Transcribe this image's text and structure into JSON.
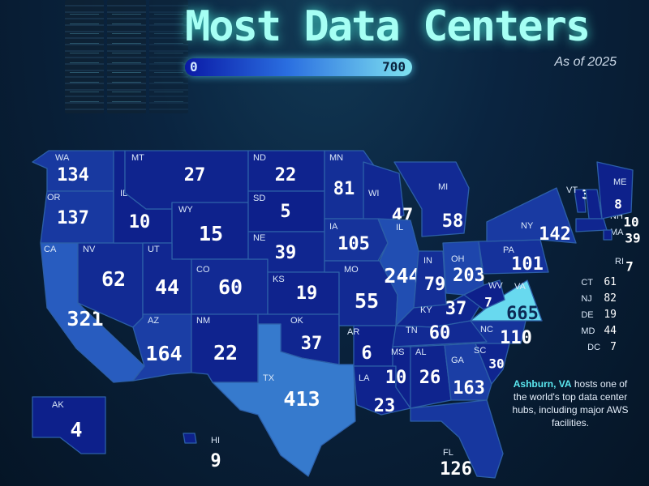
{
  "title": "Most Data Centers",
  "scale": {
    "min_label": "0",
    "max_label": "700",
    "min": 0,
    "max": 700,
    "color_low": "#0a1aa6",
    "color_high": "#7fe3f0"
  },
  "date_note": "As of 2025",
  "callout": {
    "highlight": "Ashburn, VA",
    "text": "hosts one of the world's top data center hubs, including major AWS facilities."
  },
  "colors": {
    "background": "#061a2c",
    "state_stroke": "#2c5fa8",
    "title_glow": "#a6fff4"
  },
  "states": [
    {
      "abbr": "WA",
      "value": 134
    },
    {
      "abbr": "OR",
      "value": 137
    },
    {
      "abbr": "CA",
      "value": 321
    },
    {
      "abbr": "NV",
      "value": 62
    },
    {
      "abbr": "ID",
      "value": 10
    },
    {
      "abbr": "MT",
      "value": 27
    },
    {
      "abbr": "WY",
      "value": 15
    },
    {
      "abbr": "UT",
      "value": 44
    },
    {
      "abbr": "AZ",
      "value": 164
    },
    {
      "abbr": "CO",
      "value": 60
    },
    {
      "abbr": "NM",
      "value": 22
    },
    {
      "abbr": "ND",
      "value": 22
    },
    {
      "abbr": "SD",
      "value": 5
    },
    {
      "abbr": "NE",
      "value": 39
    },
    {
      "abbr": "KS",
      "value": 19
    },
    {
      "abbr": "OK",
      "value": 37
    },
    {
      "abbr": "TX",
      "value": 413
    },
    {
      "abbr": "MN",
      "value": 81
    },
    {
      "abbr": "IA",
      "value": 105
    },
    {
      "abbr": "MO",
      "value": 55
    },
    {
      "abbr": "AR",
      "value": 6
    },
    {
      "abbr": "LA",
      "value": 23
    },
    {
      "abbr": "WI",
      "value": 47
    },
    {
      "abbr": "IL",
      "value": 244
    },
    {
      "abbr": "MI",
      "value": 58
    },
    {
      "abbr": "IN",
      "value": 79
    },
    {
      "abbr": "OH",
      "value": 203
    },
    {
      "abbr": "KY",
      "value": 37
    },
    {
      "abbr": "TN",
      "value": 60
    },
    {
      "abbr": "MS",
      "value": 10
    },
    {
      "abbr": "AL",
      "value": 26
    },
    {
      "abbr": "GA",
      "value": 163
    },
    {
      "abbr": "FL",
      "value": 126
    },
    {
      "abbr": "SC",
      "value": 30
    },
    {
      "abbr": "NC",
      "value": 110
    },
    {
      "abbr": "VA",
      "value": 665
    },
    {
      "abbr": "WV",
      "value": 7
    },
    {
      "abbr": "PA",
      "value": 101
    },
    {
      "abbr": "NY",
      "value": 142
    },
    {
      "abbr": "VT",
      "value": 3
    },
    {
      "abbr": "NH",
      "value": 10
    },
    {
      "abbr": "ME",
      "value": 8
    },
    {
      "abbr": "MA",
      "value": 39
    },
    {
      "abbr": "RI",
      "value": 7
    },
    {
      "abbr": "AK",
      "value": 4
    },
    {
      "abbr": "HI",
      "value": 9
    }
  ],
  "small_states": [
    {
      "abbr": "CT",
      "value": "61"
    },
    {
      "abbr": "NJ",
      "value": "82"
    },
    {
      "abbr": "DE",
      "value": "19"
    },
    {
      "abbr": "MD",
      "value": "44"
    },
    {
      "abbr": "DC",
      "value": "7"
    }
  ]
}
